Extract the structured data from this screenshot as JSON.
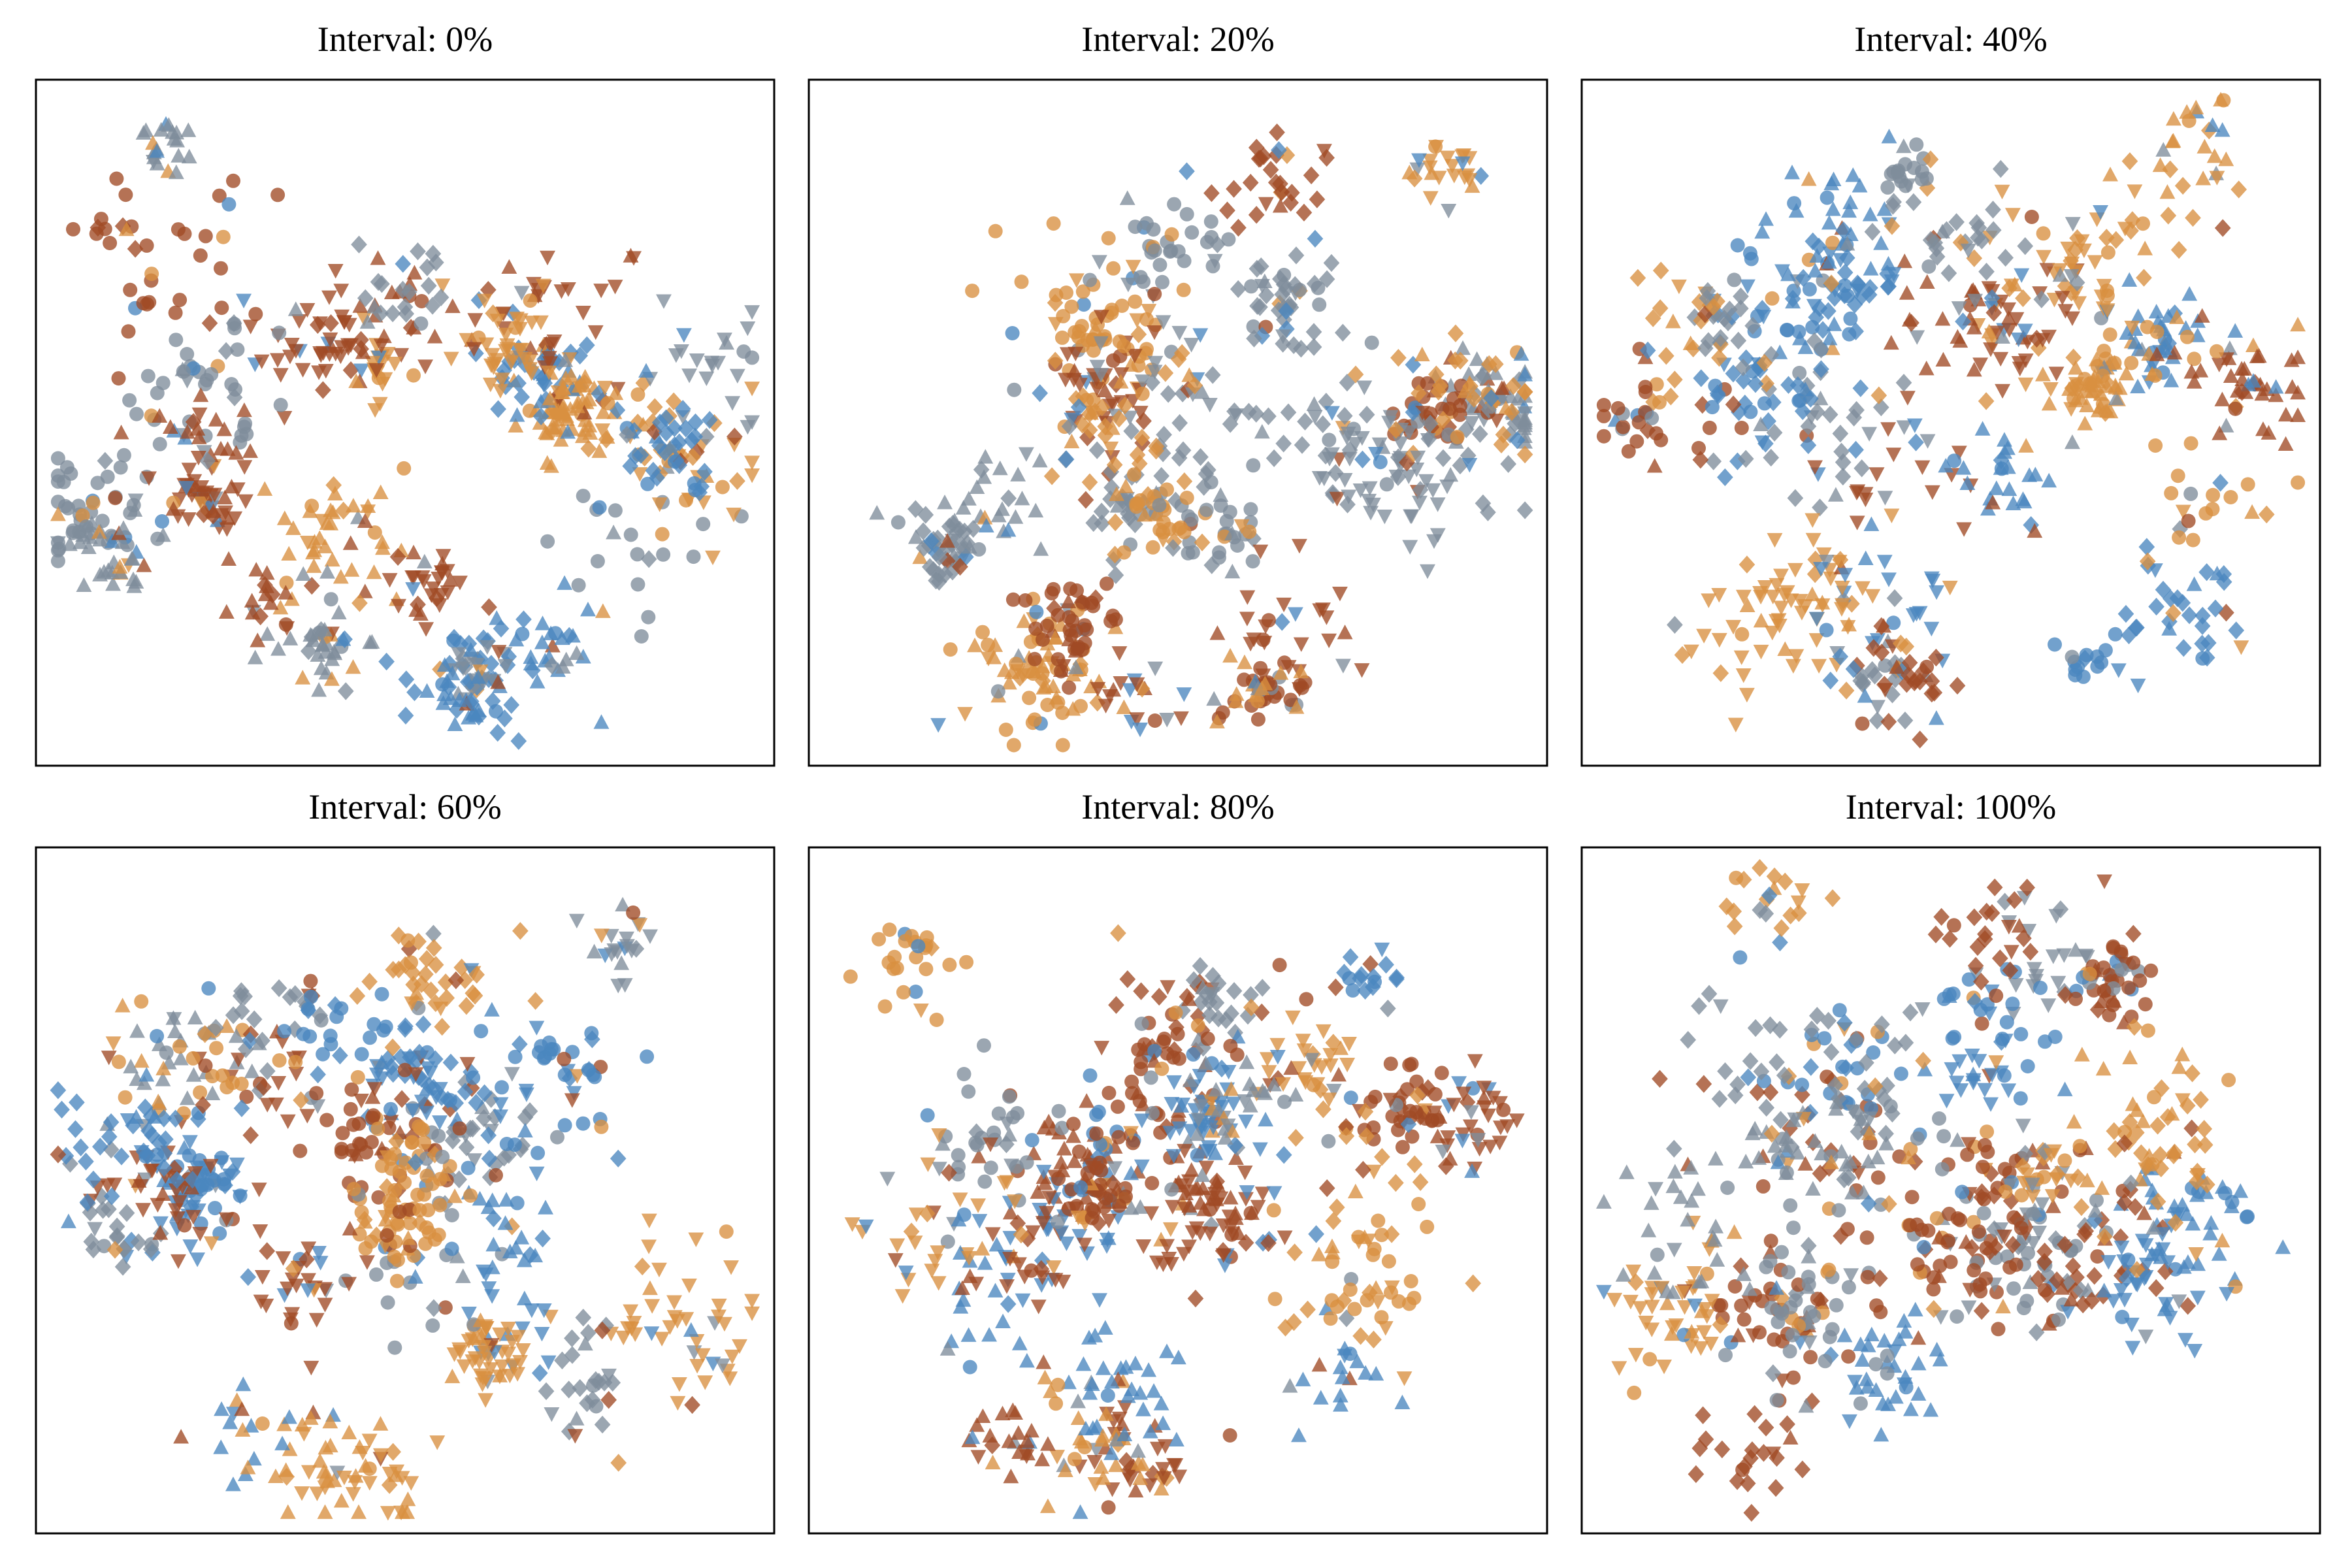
{
  "chart_data": [
    {
      "type": "scatter",
      "title": "Interval: 0%",
      "xlabel": "",
      "ylabel": "",
      "xticks": [],
      "yticks": [],
      "grid": false,
      "legend": "none"
    },
    {
      "type": "scatter",
      "title": "Interval: 20%",
      "xlabel": "",
      "ylabel": "",
      "xticks": [],
      "yticks": [],
      "grid": false,
      "legend": "none"
    },
    {
      "type": "scatter",
      "title": "Interval: 40%",
      "xlabel": "",
      "ylabel": "",
      "xticks": [],
      "yticks": [],
      "grid": false,
      "legend": "none"
    },
    {
      "type": "scatter",
      "title": "Interval: 60%",
      "xlabel": "",
      "ylabel": "",
      "xticks": [],
      "yticks": [],
      "grid": false,
      "legend": "none"
    },
    {
      "type": "scatter",
      "title": "Interval: 80%",
      "xlabel": "",
      "ylabel": "",
      "xticks": [],
      "yticks": [],
      "grid": false,
      "legend": "none"
    },
    {
      "type": "scatter",
      "title": "Interval: 100%",
      "xlabel": "",
      "ylabel": "",
      "xticks": [],
      "yticks": [],
      "grid": false,
      "legend": "none"
    }
  ],
  "colors": {
    "blue": "#4a86bf",
    "orange": "#d99040",
    "rust": "#a04a25",
    "gray": "#7f8d9b"
  },
  "markers": [
    "circle",
    "diamond",
    "triangle-up",
    "triangle-down"
  ]
}
